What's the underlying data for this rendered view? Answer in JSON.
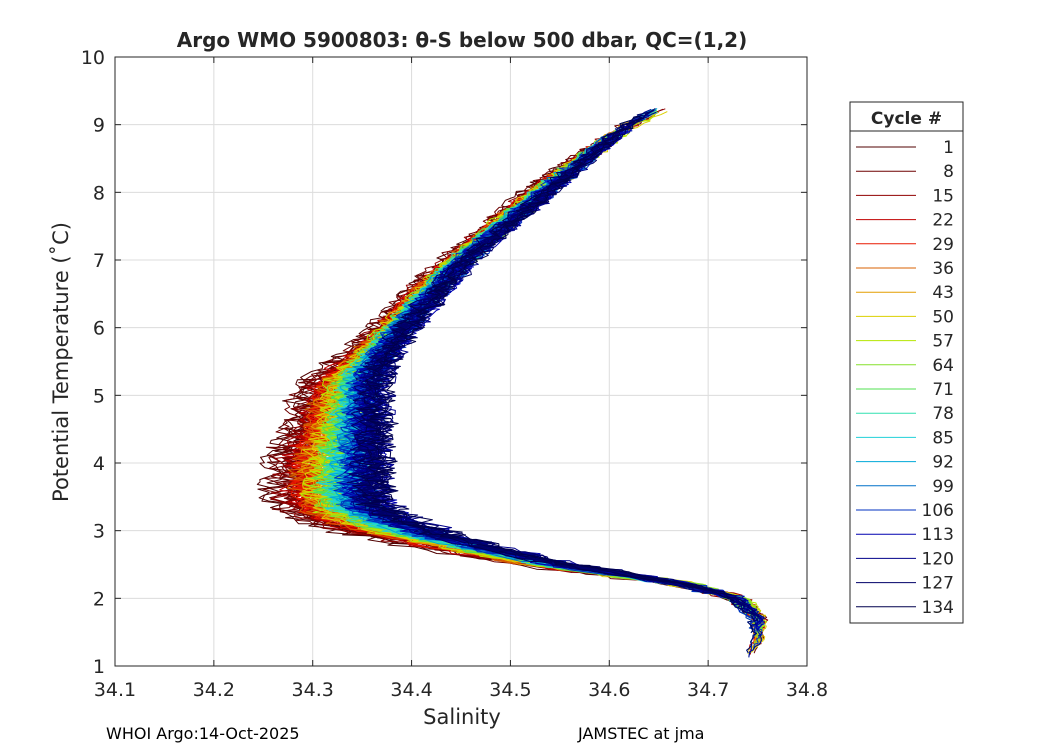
{
  "chart_data": {
    "type": "line",
    "title": "Argo WMO 5900803: θ-S below 500 dbar,  QC=(1,2)",
    "xlabel": "Salinity",
    "ylabel": "Potential Temperature (˚C)",
    "xlim": [
      34.1,
      34.8
    ],
    "ylim": [
      1,
      10
    ],
    "xticks": [
      "34.1",
      "34.2",
      "34.3",
      "34.4",
      "34.5",
      "34.6",
      "34.7",
      "34.8"
    ],
    "yticks": [
      "1",
      "2",
      "3",
      "4",
      "5",
      "6",
      "7",
      "8",
      "9",
      "10"
    ],
    "grid": true,
    "legend": {
      "title": "Cycle #",
      "placement": "right-outside",
      "entries": [
        "1",
        "8",
        "15",
        "22",
        "29",
        "36",
        "43",
        "50",
        "57",
        "64",
        "71",
        "78",
        "85",
        "92",
        "99",
        "106",
        "113",
        "120",
        "127",
        "134"
      ],
      "colors": [
        "#500000",
        "#6e0000",
        "#910000",
        "#c00000",
        "#e81800",
        "#d86000",
        "#e39d00",
        "#dcd000",
        "#b5e600",
        "#85e02c",
        "#50e050",
        "#30e0b0",
        "#20d0d8",
        "#00a8d8",
        "#0070c8",
        "#0030c0",
        "#0000b0",
        "#00008a",
        "#000068",
        "#00004e"
      ]
    },
    "series_description": "one θ-S profile per cycle (1–134), colored by cycle number",
    "centerline": {
      "t": [
        1.15,
        1.4,
        1.7,
        2.0,
        2.2,
        2.35,
        2.5,
        2.7,
        2.9,
        3.1,
        3.3,
        3.5,
        3.8,
        4.1,
        4.4,
        4.8,
        5.2,
        5.6,
        6.0,
        6.5,
        7.0,
        7.5,
        8.0,
        8.5,
        9.0,
        9.25
      ],
      "early": [
        34.74,
        34.75,
        34.75,
        34.73,
        34.68,
        34.6,
        34.52,
        34.44,
        34.37,
        34.31,
        34.28,
        34.27,
        34.27,
        34.27,
        34.28,
        34.29,
        34.3,
        34.34,
        34.37,
        34.4,
        34.44,
        34.48,
        34.52,
        34.57,
        34.62,
        34.66
      ],
      "late": [
        34.74,
        34.75,
        34.75,
        34.73,
        34.68,
        34.62,
        34.56,
        34.5,
        34.45,
        34.41,
        34.38,
        34.37,
        34.37,
        34.37,
        34.37,
        34.37,
        34.37,
        34.38,
        34.4,
        34.43,
        34.46,
        34.5,
        34.54,
        34.58,
        34.62,
        34.65
      ]
    },
    "spread": {
      "t": [
        1.15,
        2.0,
        2.5,
        3.0,
        3.5,
        4.0,
        5.0,
        6.0,
        7.0,
        8.0,
        9.0,
        9.25
      ],
      "s": [
        0.004,
        0.012,
        0.02,
        0.03,
        0.028,
        0.026,
        0.022,
        0.018,
        0.016,
        0.014,
        0.01,
        0.008
      ]
    }
  },
  "footer": {
    "left": "WHOI Argo:14-Oct-2025",
    "right": "JAMSTEC at jma"
  }
}
